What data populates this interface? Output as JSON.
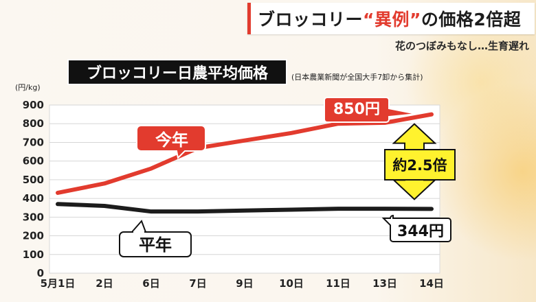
{
  "headline": {
    "part1": "ブロッコリー",
    "part2": "“異例”",
    "part3": "の価格2倍超"
  },
  "subheadline": "花のつぼみもなし…生育遅れ",
  "chart_data": {
    "type": "line",
    "title": "ブロッコリー日農平均価格",
    "source_note": "(日本農業新聞が全国大手7卸から集計)",
    "ylabel": "(円/kg)",
    "ylim": [
      0,
      900
    ],
    "y_ticks": [
      0,
      100,
      200,
      300,
      400,
      500,
      600,
      700,
      800,
      900
    ],
    "categories": [
      "5月1日",
      "2日",
      "6日",
      "7日",
      "9日",
      "10日",
      "11日",
      "13日",
      "14日"
    ],
    "grid": true,
    "series": [
      {
        "name": "今年",
        "color": "#e23b2e",
        "values": [
          430,
          480,
          560,
          670,
          710,
          750,
          800,
          805,
          850
        ]
      },
      {
        "name": "平年",
        "color": "#1c1c1c",
        "values": [
          370,
          360,
          330,
          330,
          335,
          340,
          345,
          345,
          344
        ]
      }
    ],
    "annotations": {
      "current_value": "850円",
      "normal_value": "344円",
      "ratio": "約2.5倍"
    }
  }
}
